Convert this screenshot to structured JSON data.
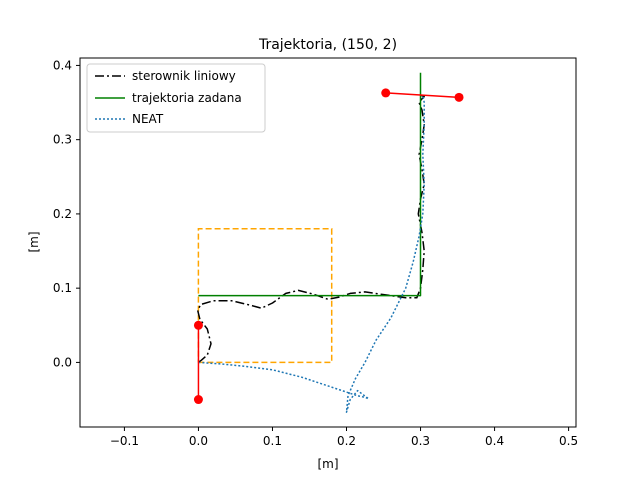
{
  "chart_data": {
    "type": "line",
    "title": "Trajektoria, (150, 2)",
    "xlabel": "[m]",
    "ylabel": "[m]",
    "xlim": [
      -0.16,
      0.51
    ],
    "ylim": [
      -0.087,
      0.41
    ],
    "xticks": [
      -0.1,
      0.0,
      0.1,
      0.2,
      0.3,
      0.4,
      0.5
    ],
    "xtick_labels": [
      "−0.1",
      "0.0",
      "0.1",
      "0.2",
      "0.3",
      "0.4",
      "0.5"
    ],
    "yticks": [
      0.0,
      0.1,
      0.2,
      0.3,
      0.4
    ],
    "ytick_labels": [
      "0.0",
      "0.1",
      "0.2",
      "0.3",
      "0.4"
    ],
    "grid": false,
    "legend_position": "top-left",
    "series": [
      {
        "name": "sterownik liniowy",
        "color": "#000000",
        "style": "dashdot",
        "x": [
          0.0,
          0.004,
          0.012,
          0.017,
          0.012,
          0.002,
          -0.001,
          0.003,
          0.02,
          0.045,
          0.07,
          0.085,
          0.1,
          0.118,
          0.135,
          0.155,
          0.175,
          0.19,
          0.205,
          0.225,
          0.245,
          0.26,
          0.28,
          0.295,
          0.3,
          0.303,
          0.305,
          0.302,
          0.297,
          0.3,
          0.305,
          0.302,
          0.298,
          0.302,
          0.305,
          0.302,
          0.298,
          0.302,
          0.305,
          0.3
        ],
        "y": [
          0.0,
          0.003,
          0.01,
          0.025,
          0.045,
          0.058,
          0.07,
          0.078,
          0.083,
          0.083,
          0.077,
          0.073,
          0.08,
          0.093,
          0.097,
          0.092,
          0.085,
          0.088,
          0.093,
          0.095,
          0.092,
          0.09,
          0.087,
          0.087,
          0.1,
          0.125,
          0.15,
          0.175,
          0.2,
          0.22,
          0.24,
          0.26,
          0.28,
          0.3,
          0.32,
          0.34,
          0.35,
          0.355,
          0.358,
          0.36
        ]
      },
      {
        "name": "trajektoria zadana",
        "color": "#008000",
        "style": "solid",
        "x": [
          0.0,
          0.3,
          0.3
        ],
        "y": [
          0.09,
          0.09,
          0.39
        ]
      },
      {
        "name": "NEAT",
        "color": "#1f77b4",
        "style": "dotted",
        "x": [
          0.0,
          0.03,
          0.06,
          0.1,
          0.14,
          0.17,
          0.2,
          0.215,
          0.225,
          0.23,
          0.215,
          0.205,
          0.2,
          0.202,
          0.212,
          0.225,
          0.24,
          0.26,
          0.28,
          0.29,
          0.298,
          0.303,
          0.305,
          0.303,
          0.305,
          0.305,
          0.303
        ],
        "y": [
          0.0,
          -0.002,
          -0.005,
          -0.01,
          -0.02,
          -0.03,
          -0.04,
          -0.045,
          -0.047,
          -0.049,
          -0.038,
          -0.05,
          -0.067,
          -0.045,
          -0.022,
          0.0,
          0.03,
          0.06,
          0.1,
          0.135,
          0.17,
          0.2,
          0.24,
          0.28,
          0.32,
          0.35,
          0.36
        ]
      }
    ],
    "rectangle": {
      "color": "#ffa500",
      "style": "dashed",
      "x": [
        0.0,
        0.18,
        0.18,
        0.0,
        0.0
      ],
      "y": [
        0.0,
        0.0,
        0.18,
        0.18,
        0.0
      ]
    },
    "red_segments": [
      {
        "color": "#ff0000",
        "x": [
          0.0,
          0.0
        ],
        "y": [
          -0.05,
          0.05
        ]
      },
      {
        "color": "#ff0000",
        "x": [
          0.253,
          0.352
        ],
        "y": [
          0.363,
          0.357
        ]
      }
    ]
  }
}
